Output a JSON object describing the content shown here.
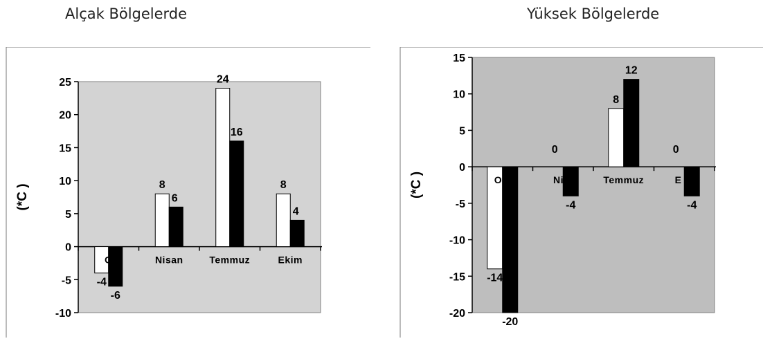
{
  "chart_data": [
    {
      "type": "bar",
      "title": "Alçak Bölgelerde",
      "ylabel": "(*C )",
      "xlabel": "",
      "categories": [
        "Ocak",
        "Nisan",
        "Temmuz",
        "Ekim"
      ],
      "category_labels_visible": [
        "O",
        "Nisan",
        "Temmuz",
        "Ekim"
      ],
      "series": [
        {
          "values": [
            -4,
            8,
            24,
            8
          ],
          "color": "#ffffff"
        },
        {
          "values": [
            -6,
            6,
            16,
            4
          ],
          "color": "#000000"
        }
      ],
      "data_labels": [
        [
          "-4",
          "8",
          "24",
          "8"
        ],
        [
          "-6",
          "6",
          "16",
          "4"
        ]
      ],
      "ylim": [
        -10,
        25
      ],
      "yticks": [
        "25",
        "20",
        "15",
        "10",
        "5",
        "0",
        "-5",
        "-10"
      ],
      "plot_background": "#d3d3d3",
      "grid": false,
      "legend": "none"
    },
    {
      "type": "bar",
      "title": "Yüksek Bölgelerde",
      "ylabel": "(*C )",
      "xlabel": "",
      "categories": [
        "Ocak",
        "Nisan",
        "Temmuz",
        "Ekim"
      ],
      "category_labels_visible": [
        "O  k",
        "Ni  n",
        "Temmuz",
        "E  m"
      ],
      "series": [
        {
          "values": [
            -14,
            0,
            8,
            0
          ],
          "color": "#ffffff"
        },
        {
          "values": [
            -20,
            -4,
            12,
            -4
          ],
          "color": "#000000"
        }
      ],
      "data_labels": [
        [
          "-14",
          "",
          "8",
          ""
        ],
        [
          "-20",
          "-4",
          "12",
          "-4"
        ]
      ],
      "zero_labels": [
        "",
        "0",
        "",
        "0"
      ],
      "ylim": [
        -20,
        15
      ],
      "yticks": [
        "15",
        "10",
        "5",
        "0",
        "-5",
        "-10",
        "-15",
        "-20"
      ],
      "plot_background": "#bebebe",
      "grid": false,
      "legend": "none"
    }
  ]
}
